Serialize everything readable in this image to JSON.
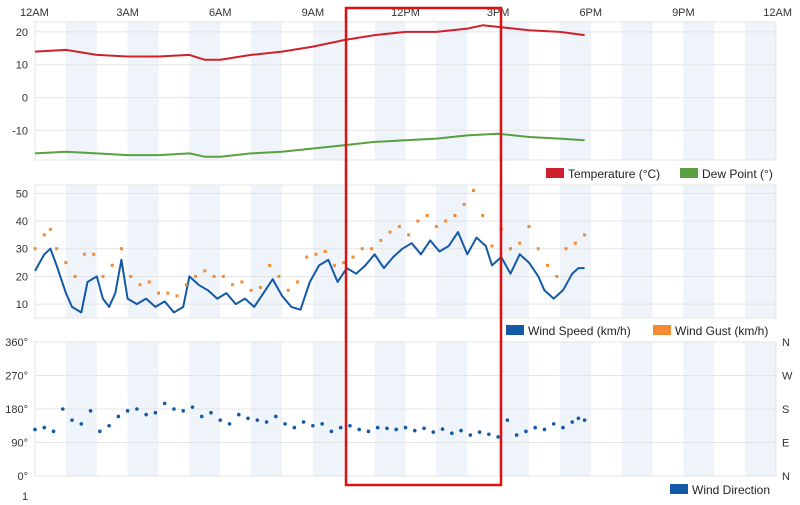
{
  "colors": {
    "temperature": "#d0202c",
    "dew_point": "#5aa040",
    "wind_speed": "#1259a8",
    "wind_gust": "#f58a32",
    "wind_direction": "#1259a8",
    "band": "#eef4fa",
    "grid": "#e4e4e4",
    "highlight": "#dd1111"
  },
  "chart_data": [
    {
      "type": "line",
      "title": "",
      "x_ticks": [
        "12AM",
        "3AM",
        "6AM",
        "9AM",
        "12PM",
        "3PM",
        "6PM",
        "9PM",
        "12AM"
      ],
      "x_range_hours": [
        0,
        24
      ],
      "data_end_hour": 17.8,
      "y_ticks": [
        "20",
        "10",
        "0",
        "-10"
      ],
      "ylim": [
        -19,
        23
      ],
      "grid": true,
      "legend_position": "bottom-right",
      "series": [
        {
          "name": "Temperature (°C)",
          "color_key": "temperature",
          "points": [
            [
              0,
              14
            ],
            [
              1,
              14.5
            ],
            [
              2,
              13
            ],
            [
              3,
              12.5
            ],
            [
              4,
              12.5
            ],
            [
              5,
              13
            ],
            [
              5.5,
              11.5
            ],
            [
              6,
              11.5
            ],
            [
              7,
              13
            ],
            [
              8,
              14
            ],
            [
              9,
              15.5
            ],
            [
              10,
              17.5
            ],
            [
              11,
              19
            ],
            [
              12,
              20
            ],
            [
              13,
              20
            ],
            [
              14,
              21
            ],
            [
              14.5,
              22
            ],
            [
              15,
              21.5
            ],
            [
              16,
              20.5
            ],
            [
              17,
              20
            ],
            [
              17.8,
              19
            ]
          ]
        },
        {
          "name": "Dew Point (°)",
          "color_key": "dew_point",
          "points": [
            [
              0,
              -17
            ],
            [
              1,
              -16.5
            ],
            [
              2,
              -17
            ],
            [
              3,
              -17.5
            ],
            [
              4,
              -17.5
            ],
            [
              5,
              -17
            ],
            [
              5.5,
              -18
            ],
            [
              6,
              -18
            ],
            [
              7,
              -17
            ],
            [
              8,
              -16.5
            ],
            [
              9,
              -15.5
            ],
            [
              10,
              -14.5
            ],
            [
              11,
              -13.5
            ],
            [
              12,
              -13
            ],
            [
              13,
              -12.5
            ],
            [
              14,
              -11.5
            ],
            [
              15,
              -11
            ],
            [
              16,
              -12
            ],
            [
              17,
              -12.5
            ],
            [
              17.8,
              -13
            ]
          ]
        }
      ]
    },
    {
      "type": "line",
      "title": "",
      "x_range_hours": [
        0,
        24
      ],
      "data_end_hour": 17.8,
      "y_ticks": [
        "50",
        "40",
        "30",
        "20",
        "10"
      ],
      "ylim": [
        5,
        53
      ],
      "grid": true,
      "legend_position": "bottom-right",
      "series": [
        {
          "name": "Wind Speed (km/h)",
          "color_key": "wind_speed",
          "points": [
            [
              0,
              22
            ],
            [
              0.3,
              28
            ],
            [
              0.5,
              30
            ],
            [
              0.7,
              24
            ],
            [
              1,
              14
            ],
            [
              1.2,
              9
            ],
            [
              1.5,
              7
            ],
            [
              1.7,
              18
            ],
            [
              2,
              20
            ],
            [
              2.2,
              12
            ],
            [
              2.4,
              9
            ],
            [
              2.6,
              14
            ],
            [
              2.8,
              26
            ],
            [
              3,
              12
            ],
            [
              3.3,
              10
            ],
            [
              3.6,
              12
            ],
            [
              3.9,
              9
            ],
            [
              4.2,
              11
            ],
            [
              4.5,
              7
            ],
            [
              4.8,
              9
            ],
            [
              5,
              20
            ],
            [
              5.3,
              17
            ],
            [
              5.6,
              15
            ],
            [
              5.9,
              12
            ],
            [
              6.2,
              14
            ],
            [
              6.5,
              10
            ],
            [
              6.8,
              12
            ],
            [
              7.1,
              9
            ],
            [
              7.4,
              14
            ],
            [
              7.7,
              19
            ],
            [
              8,
              13
            ],
            [
              8.3,
              9
            ],
            [
              8.6,
              8
            ],
            [
              8.9,
              18
            ],
            [
              9.2,
              24
            ],
            [
              9.5,
              26
            ],
            [
              9.8,
              18
            ],
            [
              10.1,
              23
            ],
            [
              10.4,
              21
            ],
            [
              10.7,
              24
            ],
            [
              11,
              28
            ],
            [
              11.3,
              23
            ],
            [
              11.6,
              27
            ],
            [
              11.9,
              30
            ],
            [
              12.2,
              32
            ],
            [
              12.5,
              28
            ],
            [
              12.8,
              33
            ],
            [
              13.1,
              29
            ],
            [
              13.4,
              31
            ],
            [
              13.7,
              36
            ],
            [
              14,
              28
            ],
            [
              14.3,
              34
            ],
            [
              14.6,
              31
            ],
            [
              14.8,
              24
            ],
            [
              15.1,
              27
            ],
            [
              15.4,
              21
            ],
            [
              15.7,
              28
            ],
            [
              16,
              25
            ],
            [
              16.3,
              20
            ],
            [
              16.5,
              15
            ],
            [
              16.8,
              12
            ],
            [
              17.1,
              15
            ],
            [
              17.4,
              21
            ],
            [
              17.6,
              23
            ],
            [
              17.8,
              23
            ]
          ]
        },
        {
          "name": "Wind Gust (km/h)",
          "color_key": "wind_gust",
          "points": [
            [
              0,
              30
            ],
            [
              0.3,
              35
            ],
            [
              0.5,
              37
            ],
            [
              0.7,
              30
            ],
            [
              1,
              25
            ],
            [
              1.3,
              20
            ],
            [
              1.6,
              28
            ],
            [
              1.9,
              28
            ],
            [
              2.2,
              20
            ],
            [
              2.5,
              24
            ],
            [
              2.8,
              30
            ],
            [
              3.1,
              20
            ],
            [
              3.4,
              17
            ],
            [
              3.7,
              18
            ],
            [
              4,
              14
            ],
            [
              4.3,
              14
            ],
            [
              4.6,
              13
            ],
            [
              4.9,
              17
            ],
            [
              5.2,
              20
            ],
            [
              5.5,
              22
            ],
            [
              5.8,
              20
            ],
            [
              6.1,
              20
            ],
            [
              6.4,
              17
            ],
            [
              6.7,
              18
            ],
            [
              7,
              15
            ],
            [
              7.3,
              16
            ],
            [
              7.6,
              24
            ],
            [
              7.9,
              20
            ],
            [
              8.2,
              15
            ],
            [
              8.5,
              18
            ],
            [
              8.8,
              27
            ],
            [
              9.1,
              28
            ],
            [
              9.4,
              29
            ],
            [
              9.7,
              24
            ],
            [
              10,
              25
            ],
            [
              10.3,
              27
            ],
            [
              10.6,
              30
            ],
            [
              10.9,
              30
            ],
            [
              11.2,
              33
            ],
            [
              11.5,
              36
            ],
            [
              11.8,
              38
            ],
            [
              12.1,
              35
            ],
            [
              12.4,
              40
            ],
            [
              12.7,
              42
            ],
            [
              13,
              38
            ],
            [
              13.3,
              40
            ],
            [
              13.6,
              42
            ],
            [
              13.9,
              46
            ],
            [
              14.2,
              51
            ],
            [
              14.5,
              42
            ],
            [
              14.8,
              31
            ],
            [
              15.1,
              37
            ],
            [
              15.4,
              30
            ],
            [
              15.7,
              32
            ],
            [
              16,
              38
            ],
            [
              16.3,
              30
            ],
            [
              16.6,
              24
            ],
            [
              16.9,
              20
            ],
            [
              17.2,
              30
            ],
            [
              17.5,
              32
            ],
            [
              17.8,
              35
            ]
          ]
        }
      ]
    },
    {
      "type": "scatter",
      "title": "",
      "x_range_hours": [
        0,
        24
      ],
      "data_end_hour": 17.8,
      "y_ticks": [
        "360°",
        "270°",
        "180°",
        "90°",
        "0°"
      ],
      "y_ticks_right": [
        "N",
        "W",
        "S",
        "E",
        "N"
      ],
      "ylim": [
        0,
        360
      ],
      "grid": true,
      "legend_position": "bottom-right",
      "series": [
        {
          "name": "Wind Direction",
          "color_key": "wind_direction",
          "points": [
            [
              0,
              125
            ],
            [
              0.3,
              130
            ],
            [
              0.6,
              120
            ],
            [
              0.9,
              180
            ],
            [
              1.2,
              150
            ],
            [
              1.5,
              140
            ],
            [
              1.8,
              175
            ],
            [
              2.1,
              120
            ],
            [
              2.4,
              135
            ],
            [
              2.7,
              160
            ],
            [
              3,
              175
            ],
            [
              3.3,
              180
            ],
            [
              3.6,
              165
            ],
            [
              3.9,
              170
            ],
            [
              4.2,
              195
            ],
            [
              4.5,
              180
            ],
            [
              4.8,
              175
            ],
            [
              5.1,
              185
            ],
            [
              5.4,
              160
            ],
            [
              5.7,
              170
            ],
            [
              6,
              150
            ],
            [
              6.3,
              140
            ],
            [
              6.6,
              165
            ],
            [
              6.9,
              155
            ],
            [
              7.2,
              150
            ],
            [
              7.5,
              145
            ],
            [
              7.8,
              160
            ],
            [
              8.1,
              140
            ],
            [
              8.4,
              130
            ],
            [
              8.7,
              145
            ],
            [
              9,
              135
            ],
            [
              9.3,
              140
            ],
            [
              9.6,
              120
            ],
            [
              9.9,
              130
            ],
            [
              10.2,
              135
            ],
            [
              10.5,
              125
            ],
            [
              10.8,
              120
            ],
            [
              11.1,
              130
            ],
            [
              11.4,
              128
            ],
            [
              11.7,
              125
            ],
            [
              12,
              130
            ],
            [
              12.3,
              122
            ],
            [
              12.6,
              128
            ],
            [
              12.9,
              118
            ],
            [
              13.2,
              126
            ],
            [
              13.5,
              115
            ],
            [
              13.8,
              122
            ],
            [
              14.1,
              110
            ],
            [
              14.4,
              118
            ],
            [
              14.7,
              112
            ],
            [
              15,
              105
            ],
            [
              15.3,
              150
            ],
            [
              15.6,
              110
            ],
            [
              15.9,
              120
            ],
            [
              16.2,
              130
            ],
            [
              16.5,
              125
            ],
            [
              16.8,
              140
            ],
            [
              17.1,
              130
            ],
            [
              17.4,
              145
            ],
            [
              17.6,
              155
            ],
            [
              17.8,
              150
            ]
          ]
        }
      ]
    }
  ],
  "legends": {
    "panel1": [
      "Temperature (°C)",
      "Dew Point (°)"
    ],
    "panel2": [
      "Wind Speed (km/h)",
      "Wind Gust (km/h)"
    ],
    "panel3": [
      "Wind Direction"
    ]
  },
  "bottom_fragment": "1"
}
